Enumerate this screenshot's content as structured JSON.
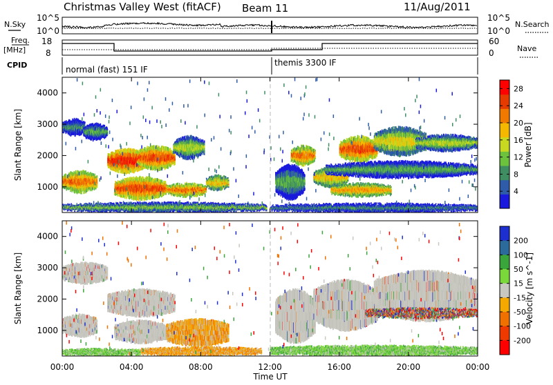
{
  "header": {
    "station": "Christmas Valley West (fitACF)",
    "beam": "Beam 11",
    "date": "11/Aug/2011"
  },
  "strips": {
    "nsky_label": "N.Sky",
    "nsearch_label": "N.Search",
    "nsky_ticks": [
      "10^5",
      "10^0"
    ],
    "nsky_right_ticks": [
      "10^5",
      "10^0"
    ],
    "freq_label": "Freq.",
    "freq_unit": "[MHz]",
    "freq_ticks": [
      "18",
      "8"
    ],
    "nave_label": "Nave",
    "nave_ticks": [
      "60",
      "0"
    ],
    "cpid_label": "CPID",
    "cpid_segments": [
      "normal (fast) 151 IF",
      "themis 3300 IF"
    ]
  },
  "chart_data": [
    {
      "type": "heatmap",
      "name": "power-panel",
      "ylabel": "Slant Range [km]",
      "x_ticks": [
        "00:00",
        "04:00",
        "08:00",
        "12:00",
        "16:00",
        "20:00",
        "00:00"
      ],
      "x_range_hours": [
        0,
        24
      ],
      "y_ticks": [
        1000,
        2000,
        3000,
        4000
      ],
      "y_range_km": [
        180,
        4500
      ],
      "colorbar_label": "Power [dB]",
      "colorbar_ticks": [
        4,
        8,
        12,
        16,
        20,
        24,
        28
      ],
      "colorbar_range": [
        0,
        30
      ],
      "colorbar_colors": [
        "#1a1adc",
        "#2f5ca8",
        "#3e8e62",
        "#6cc23c",
        "#c8d820",
        "#f5b800",
        "#f07a00",
        "#e53b00",
        "#ff0000"
      ],
      "vertical_marker_hour": 12,
      "echo_regions": [
        {
          "t": [
            0.0,
            1.3
          ],
          "r": [
            2650,
            3150
          ],
          "level": 8
        },
        {
          "t": [
            1.2,
            2.6
          ],
          "r": [
            2500,
            3000
          ],
          "level": 10
        },
        {
          "t": [
            0.0,
            2.0
          ],
          "r": [
            820,
            1500
          ],
          "level": 22
        },
        {
          "t": [
            2.6,
            4.8
          ],
          "r": [
            1450,
            2200
          ],
          "level": 26
        },
        {
          "t": [
            4.3,
            6.5
          ],
          "r": [
            1550,
            2300
          ],
          "level": 24
        },
        {
          "t": [
            3.0,
            6.0
          ],
          "r": [
            600,
            1300
          ],
          "level": 24
        },
        {
          "t": [
            6.0,
            8.3
          ],
          "r": [
            700,
            1100
          ],
          "level": 22
        },
        {
          "t": [
            8.3,
            9.6
          ],
          "r": [
            900,
            1350
          ],
          "level": 18
        },
        {
          "t": [
            6.4,
            8.2
          ],
          "r": [
            1900,
            2600
          ],
          "level": 14
        },
        {
          "t": [
            0.0,
            11.8
          ],
          "r": [
            200,
            480
          ],
          "level": 12
        },
        {
          "t": [
            12.3,
            14.0
          ],
          "r": [
            600,
            1700
          ],
          "level": 10
        },
        {
          "t": [
            13.2,
            14.6
          ],
          "r": [
            1700,
            2300
          ],
          "level": 22
        },
        {
          "t": [
            14.5,
            16.5
          ],
          "r": [
            1000,
            1600
          ],
          "level": 18
        },
        {
          "t": [
            16.0,
            18.2
          ],
          "r": [
            1800,
            2600
          ],
          "level": 24
        },
        {
          "t": [
            18.0,
            21.0
          ],
          "r": [
            2000,
            2900
          ],
          "level": 16
        },
        {
          "t": [
            20.4,
            24.0
          ],
          "r": [
            2150,
            2650
          ],
          "level": 14
        },
        {
          "t": [
            15.2,
            24.0
          ],
          "r": [
            1300,
            1800
          ],
          "level": 10
        },
        {
          "t": [
            12.0,
            24.0
          ],
          "r": [
            200,
            450
          ],
          "level": 8
        },
        {
          "t": [
            15.5,
            19.0
          ],
          "r": [
            700,
            1100
          ],
          "level": 20
        }
      ]
    },
    {
      "type": "heatmap",
      "name": "velocity-panel",
      "ylabel": "Slant Range [km]",
      "xlabel": "Time UT",
      "x_ticks": [
        "00:00",
        "04:00",
        "08:00",
        "12:00",
        "16:00",
        "20:00",
        "00:00"
      ],
      "x_range_hours": [
        0,
        24
      ],
      "y_ticks": [
        1000,
        2000,
        3000,
        4000
      ],
      "y_range_km": [
        180,
        4500
      ],
      "colorbar_label": "Velocity [m s^-1]",
      "colorbar_ticks": [
        200,
        100,
        50,
        15,
        -15,
        -50,
        -100,
        -200
      ],
      "colorbar_colors": [
        "#1e2fd0",
        "#2b6a9a",
        "#3aa53a",
        "#7ad83a",
        "#c8c8c0",
        "#f5a800",
        "#f07000",
        "#ee3a00",
        "#ff0000"
      ],
      "vertical_marker_hour": 12,
      "echo_regions": [
        {
          "t": [
            0.0,
            2.6
          ],
          "r": [
            2500,
            3150
          ],
          "class": "gray"
        },
        {
          "t": [
            0.0,
            2.0
          ],
          "r": [
            800,
            1500
          ],
          "class": "gray"
        },
        {
          "t": [
            2.6,
            6.5
          ],
          "r": [
            1450,
            2300
          ],
          "class": "gray"
        },
        {
          "t": [
            3.0,
            6.0
          ],
          "r": [
            600,
            1300
          ],
          "class": "gray"
        },
        {
          "t": [
            6.0,
            8.3
          ],
          "r": [
            850,
            1150
          ],
          "class": "gray"
        },
        {
          "t": [
            6.0,
            9.6
          ],
          "r": [
            500,
            1350
          ],
          "class": "orange"
        },
        {
          "t": [
            4.5,
            11.5
          ],
          "r": [
            200,
            450
          ],
          "class": "orange"
        },
        {
          "t": [
            0.0,
            4.5
          ],
          "r": [
            200,
            400
          ],
          "class": "green"
        },
        {
          "t": [
            12.0,
            24.0
          ],
          "r": [
            200,
            500
          ],
          "class": "green"
        },
        {
          "t": [
            12.3,
            14.6
          ],
          "r": [
            600,
            2300
          ],
          "class": "gray"
        },
        {
          "t": [
            14.5,
            18.2
          ],
          "r": [
            1000,
            2600
          ],
          "class": "gray"
        },
        {
          "t": [
            18.0,
            24.0
          ],
          "r": [
            1300,
            2900
          ],
          "class": "gray"
        },
        {
          "t": [
            17.5,
            24.0
          ],
          "r": [
            1400,
            1700
          ],
          "class": "mixed"
        }
      ]
    }
  ]
}
